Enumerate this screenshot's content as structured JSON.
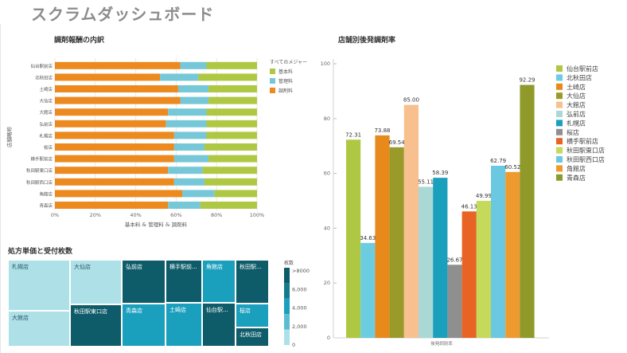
{
  "dashboard": {
    "title": "スクラムダッシュボード"
  },
  "colors": {
    "base": "#afc843",
    "mgmt": "#76c8d8",
    "drug": "#ec8a1f",
    "tm_light": "#aee0e8",
    "tm_mid": "#1a9fbd",
    "tm_dark": "#0e5b69"
  },
  "stack_chart": {
    "title": "調剤報酬の内訳",
    "chart_data": {
      "type": "bar",
      "orientation": "horizontal",
      "stacked": true,
      "categories": [
        "仙台駅前店",
        "北秋田店",
        "土崎店",
        "大仙店",
        "大館店",
        "弘前店",
        "札幌店",
        "桜店",
        "横手駅前店",
        "秋田駅東口店",
        "秋田駅西口店",
        "角館店",
        "青森店"
      ],
      "series": [
        {
          "name": "調剤料",
          "color": "#ec8a1f",
          "values": [
            62,
            52,
            61,
            62,
            56,
            55,
            59,
            59,
            59,
            56,
            59,
            63,
            56
          ]
        },
        {
          "name": "管理料",
          "color": "#76c8d8",
          "values": [
            13,
            19,
            15,
            14,
            19,
            20,
            16,
            15,
            17,
            17,
            15,
            16,
            16
          ]
        },
        {
          "name": "基本料",
          "color": "#afc843",
          "values": [
            25,
            29,
            24,
            24,
            25,
            25,
            25,
            26,
            24,
            27,
            26,
            21,
            28
          ]
        }
      ],
      "xticks": [
        "0%",
        "20%",
        "40%",
        "60%",
        "80%",
        "100%"
      ],
      "xlabel": "基本料 & 管理料 & 調剤料",
      "ylabel": "店舗略称",
      "legend_title": "すべてのメジャー",
      "legend": [
        "基本料",
        "管理料",
        "調剤料"
      ],
      "legend_position": "right"
    }
  },
  "bar_chart": {
    "title": "店舗別後発調剤率",
    "chart_data": {
      "type": "bar",
      "xlabel": "後発調剤率",
      "ylim": [
        0,
        100
      ],
      "yticks": [
        "0",
        "20",
        "40",
        "60",
        "80",
        "100"
      ],
      "legend_position": "right",
      "series": [
        {
          "name": "仙台駅前店",
          "value": 72.31,
          "color": "#afc843"
        },
        {
          "name": "北秋田店",
          "value": 34.63,
          "color": "#6ccde0"
        },
        {
          "name": "土崎店",
          "value": 73.88,
          "color": "#e8891c"
        },
        {
          "name": "大仙店",
          "value": 69.54,
          "color": "#9a9a2a"
        },
        {
          "name": "大館店",
          "value": 85.0,
          "color": "#f7c08e"
        },
        {
          "name": "弘前店",
          "value": 55.11,
          "color": "#a9d8d5"
        },
        {
          "name": "札幌店",
          "value": 58.39,
          "color": "#1a9fbd"
        },
        {
          "name": "桜店",
          "value": 26.67,
          "color": "#8f8f8f"
        },
        {
          "name": "横手駅前店",
          "value": 46.13,
          "color": "#e86424"
        },
        {
          "name": "秋田駅東口店",
          "value": 49.99,
          "color": "#c5d95a"
        },
        {
          "name": "秋田駅西口店",
          "value": 62.79,
          "color": "#6ac9e0"
        },
        {
          "name": "角館店",
          "value": 60.52,
          "color": "#ef9a2e"
        },
        {
          "name": "青森店",
          "value": 92.29,
          "color": "#8f9a2a"
        }
      ],
      "labels": [
        "72.31",
        "34.63",
        "73.88",
        "69.54",
        "85.00",
        "55.11",
        "58.39",
        "26.67",
        "46.13",
        "49.99",
        "62.79",
        "60.52",
        "92.29"
      ]
    }
  },
  "treemap": {
    "title": "処方単価と受付枚数",
    "chart_data": {
      "type": "heatmap",
      "cells": [
        {
          "label": "札幌店",
          "shade": "light"
        },
        {
          "label": "大仙店",
          "shade": "light"
        },
        {
          "label": "大館店",
          "shade": "light"
        },
        {
          "label": "弘前店",
          "shade": "dark"
        },
        {
          "label": "横手駅前...",
          "shade": "dark"
        },
        {
          "label": "角館店",
          "shade": "mid"
        },
        {
          "label": "秋田駅...",
          "shade": "dark"
        },
        {
          "label": "秋田駅東口店",
          "shade": "dark"
        },
        {
          "label": "青森店",
          "shade": "mid"
        },
        {
          "label": "土崎店",
          "shade": "mid"
        },
        {
          "label": "仙台駅...",
          "shade": "dark"
        },
        {
          "label": "桜店",
          "shade": "mid"
        },
        {
          "label": "北秋田店",
          "shade": "dark"
        }
      ],
      "legend_title": "枚数",
      "legend_labels": [
        ">8000",
        "6,000",
        "4,000",
        "2,000",
        "0"
      ]
    }
  }
}
